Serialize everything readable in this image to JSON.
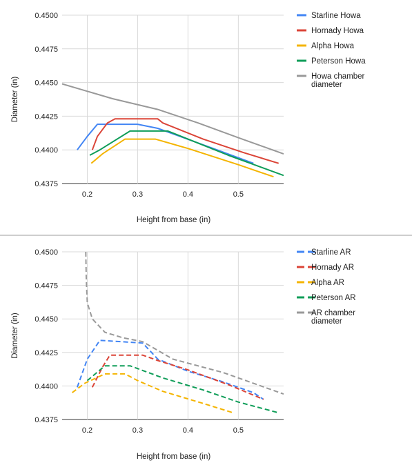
{
  "chart_data": [
    {
      "type": "line",
      "title": "",
      "xlabel": "Height from base (in)",
      "ylabel": "Diameter (in)",
      "xlim": [
        0.15,
        0.59
      ],
      "ylim": [
        0.4375,
        0.45
      ],
      "x_ticks": [
        "0.2",
        "0.3",
        "0.4",
        "0.5"
      ],
      "y_ticks": [
        "0.4375",
        "0.4400",
        "0.4425",
        "0.4450",
        "0.4475",
        "0.4500"
      ],
      "grid": true,
      "legend": "right",
      "line_style": "solid",
      "series": [
        {
          "name": "Starline Howa",
          "color": "#4285f4",
          "points": [
            [
              0.18,
              0.44
            ],
            [
              0.2,
              0.441
            ],
            [
              0.22,
              0.4419
            ],
            [
              0.3,
              0.4419
            ],
            [
              0.34,
              0.4416
            ],
            [
              0.45,
              0.4401
            ],
            [
              0.53,
              0.439
            ]
          ]
        },
        {
          "name": "Hornady Howa",
          "color": "#db4437",
          "points": [
            [
              0.21,
              0.44
            ],
            [
              0.22,
              0.441
            ],
            [
              0.24,
              0.442
            ],
            [
              0.255,
              0.4423
            ],
            [
              0.34,
              0.4423
            ],
            [
              0.35,
              0.442
            ],
            [
              0.43,
              0.4408
            ],
            [
              0.51,
              0.4398
            ],
            [
              0.58,
              0.439
            ]
          ]
        },
        {
          "name": "Alpha Howa",
          "color": "#f4b400",
          "points": [
            [
              0.208,
              0.439
            ],
            [
              0.23,
              0.4397
            ],
            [
              0.275,
              0.4408
            ],
            [
              0.335,
              0.4408
            ],
            [
              0.4,
              0.4401
            ],
            [
              0.5,
              0.4389
            ],
            [
              0.57,
              0.438
            ]
          ]
        },
        {
          "name": "Peterson Howa",
          "color": "#0f9d58",
          "points": [
            [
              0.205,
              0.4396
            ],
            [
              0.225,
              0.44
            ],
            [
              0.285,
              0.4414
            ],
            [
              0.36,
              0.4414
            ],
            [
              0.42,
              0.4405
            ],
            [
              0.48,
              0.4396
            ],
            [
              0.59,
              0.4381
            ]
          ]
        },
        {
          "name": "Howa chamber diameter",
          "color": "#999999",
          "points": [
            [
              0.15,
              0.4449
            ],
            [
              0.25,
              0.4438
            ],
            [
              0.34,
              0.443
            ],
            [
              0.42,
              0.442
            ],
            [
              0.5,
              0.4409
            ],
            [
              0.59,
              0.4397
            ]
          ]
        }
      ]
    },
    {
      "type": "line",
      "title": "",
      "xlabel": "Height from base (in)",
      "ylabel": "Diameter (in)",
      "xlim": [
        0.15,
        0.59
      ],
      "ylim": [
        0.4375,
        0.45
      ],
      "x_ticks": [
        "0.2",
        "0.3",
        "0.4",
        "0.5"
      ],
      "y_ticks": [
        "0.4375",
        "0.4400",
        "0.4425",
        "0.4450",
        "0.4475",
        "0.4500"
      ],
      "grid": true,
      "legend": "right",
      "line_style": "dashed",
      "series": [
        {
          "name": "Starline AR",
          "color": "#4285f4",
          "points": [
            [
              0.18,
              0.4399
            ],
            [
              0.2,
              0.442
            ],
            [
              0.225,
              0.4434
            ],
            [
              0.31,
              0.4432
            ],
            [
              0.34,
              0.442
            ],
            [
              0.4,
              0.4411
            ],
            [
              0.47,
              0.4403
            ],
            [
              0.53,
              0.4395
            ],
            [
              0.55,
              0.439
            ]
          ]
        },
        {
          "name": "Hornady AR",
          "color": "#db4437",
          "points": [
            [
              0.21,
              0.4399
            ],
            [
              0.23,
              0.4414
            ],
            [
              0.245,
              0.4423
            ],
            [
              0.31,
              0.4423
            ],
            [
              0.34,
              0.4419
            ],
            [
              0.4,
              0.4412
            ],
            [
              0.48,
              0.4401
            ],
            [
              0.55,
              0.439
            ]
          ]
        },
        {
          "name": "Alpha AR",
          "color": "#f4b400",
          "points": [
            [
              0.17,
              0.4395
            ],
            [
              0.195,
              0.4402
            ],
            [
              0.235,
              0.4409
            ],
            [
              0.275,
              0.4409
            ],
            [
              0.3,
              0.4404
            ],
            [
              0.35,
              0.4396
            ],
            [
              0.43,
              0.4387
            ],
            [
              0.49,
              0.438
            ]
          ]
        },
        {
          "name": "Peterson AR",
          "color": "#0f9d58",
          "points": [
            [
              0.2,
              0.4404
            ],
            [
              0.235,
              0.4415
            ],
            [
              0.285,
              0.4415
            ],
            [
              0.35,
              0.4406
            ],
            [
              0.43,
              0.4397
            ],
            [
              0.5,
              0.4388
            ],
            [
              0.58,
              0.438
            ]
          ]
        },
        {
          "name": "AR chamber diameter",
          "color": "#999999",
          "points": [
            [
              0.197,
              0.45
            ],
            [
              0.198,
              0.448
            ],
            [
              0.2,
              0.4462
            ],
            [
              0.21,
              0.445
            ],
            [
              0.235,
              0.444
            ],
            [
              0.27,
              0.4436
            ],
            [
              0.31,
              0.4433
            ],
            [
              0.37,
              0.442
            ],
            [
              0.47,
              0.441
            ],
            [
              0.59,
              0.4394
            ]
          ]
        }
      ]
    }
  ]
}
